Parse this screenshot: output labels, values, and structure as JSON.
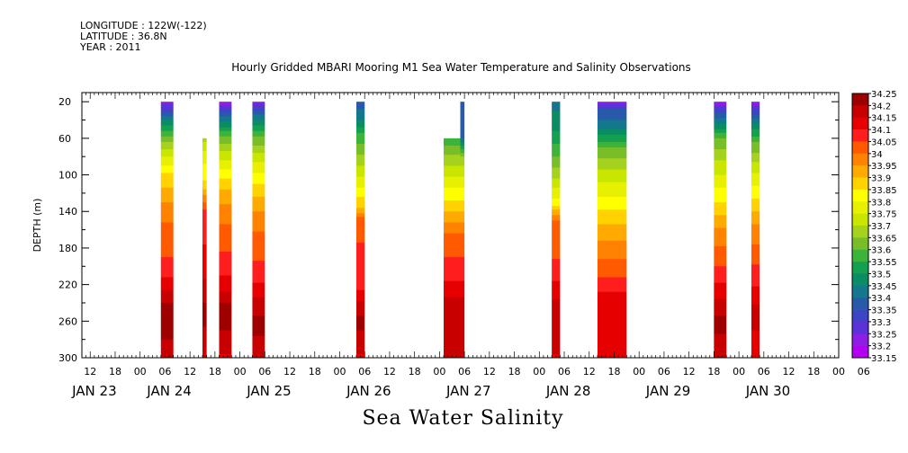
{
  "header": {
    "longitude": "LONGITUDE : 122W(-122)",
    "latitude": "LATITUDE : 36.8N",
    "year": "YEAR : 2011"
  },
  "chart_data": {
    "type": "heatmap",
    "title": "Hourly Gridded MBARI Mooring M1 Sea Water Temperature and Salinity Observations",
    "bottom_label": "Sea Water Salinity",
    "ylabel": "DEPTH (m)",
    "ylim": [
      10,
      300
    ],
    "y_reversed": true,
    "y_ticks": [
      20,
      60,
      100,
      140,
      180,
      220,
      260,
      300
    ],
    "xlim_hours": [
      -14,
      168
    ],
    "x_hour_ticks": [
      {
        "h": -12,
        "label": "12"
      },
      {
        "h": -6,
        "label": "18"
      },
      {
        "h": 0,
        "label": "00"
      },
      {
        "h": 6,
        "label": "06"
      },
      {
        "h": 12,
        "label": "12"
      },
      {
        "h": 18,
        "label": "18"
      },
      {
        "h": 24,
        "label": "00"
      },
      {
        "h": 30,
        "label": "06"
      },
      {
        "h": 36,
        "label": "12"
      },
      {
        "h": 42,
        "label": "18"
      },
      {
        "h": 48,
        "label": "00"
      },
      {
        "h": 54,
        "label": "06"
      },
      {
        "h": 60,
        "label": "12"
      },
      {
        "h": 66,
        "label": "18"
      },
      {
        "h": 72,
        "label": "00"
      },
      {
        "h": 78,
        "label": "06"
      },
      {
        "h": 84,
        "label": "12"
      },
      {
        "h": 90,
        "label": "18"
      },
      {
        "h": 96,
        "label": "00"
      },
      {
        "h": 102,
        "label": "06"
      },
      {
        "h": 108,
        "label": "12"
      },
      {
        "h": 114,
        "label": "18"
      },
      {
        "h": 120,
        "label": "00"
      },
      {
        "h": 126,
        "label": "06"
      },
      {
        "h": 132,
        "label": "12"
      },
      {
        "h": 138,
        "label": "18"
      },
      {
        "h": 144,
        "label": "00"
      },
      {
        "h": 150,
        "label": "06"
      },
      {
        "h": 156,
        "label": "12"
      },
      {
        "h": 162,
        "label": "18"
      },
      {
        "h": 168,
        "label": "00"
      },
      {
        "h": 174,
        "label": "06"
      }
    ],
    "x_day_labels": [
      {
        "h": -11,
        "label": "JAN 23"
      },
      {
        "h": 7,
        "label": "JAN 24"
      },
      {
        "h": 31,
        "label": "JAN 25"
      },
      {
        "h": 55,
        "label": "JAN 26"
      },
      {
        "h": 79,
        "label": "JAN 27"
      },
      {
        "h": 103,
        "label": "JAN 28"
      },
      {
        "h": 127,
        "label": "JAN 29"
      },
      {
        "h": 151,
        "label": "JAN 30"
      }
    ],
    "colorbar": {
      "levels": [
        "34.25",
        "34.2",
        "34.15",
        "34.1",
        "34.05",
        "34",
        "33.95",
        "33.9",
        "33.85",
        "33.8",
        "33.75",
        "33.7",
        "33.65",
        "33.6",
        "33.55",
        "33.5",
        "33.45",
        "33.4",
        "33.35",
        "33.3",
        "33.25",
        "33.2",
        "33.15"
      ],
      "colors": [
        "#9e0000",
        "#c80000",
        "#e60000",
        "#ff1e1e",
        "#ff5a00",
        "#ff8200",
        "#ffaa00",
        "#ffd200",
        "#ffff00",
        "#e6f000",
        "#c8e600",
        "#a5d21e",
        "#78be28",
        "#3cb43c",
        "#14a050",
        "#0a8c64",
        "#14788c",
        "#285aaa",
        "#3c46c3",
        "#5a32d7",
        "#8c1ee6",
        "#b400f0"
      ]
    },
    "columns": [
      {
        "start": 5,
        "end": 8,
        "top": 20,
        "profile": [
          [
            20,
            33.22
          ],
          [
            30,
            33.32
          ],
          [
            40,
            33.45
          ],
          [
            55,
            33.58
          ],
          [
            75,
            33.72
          ],
          [
            100,
            33.86
          ],
          [
            130,
            33.95
          ],
          [
            160,
            34.02
          ],
          [
            200,
            34.06
          ],
          [
            230,
            34.16
          ],
          [
            250,
            34.24
          ],
          [
            270,
            34.22
          ],
          [
            300,
            34.16
          ]
        ]
      },
      {
        "start": 15,
        "end": 16,
        "top": 60,
        "profile": [
          [
            60,
            33.68
          ],
          [
            80,
            33.78
          ],
          [
            110,
            33.86
          ],
          [
            140,
            34.07
          ],
          [
            200,
            34.12
          ],
          [
            250,
            34.22
          ],
          [
            300,
            34.16
          ]
        ]
      },
      {
        "start": 19,
        "end": 22,
        "top": 20,
        "profile": [
          [
            20,
            33.2
          ],
          [
            30,
            33.33
          ],
          [
            45,
            33.48
          ],
          [
            60,
            33.62
          ],
          [
            85,
            33.76
          ],
          [
            110,
            33.88
          ],
          [
            140,
            33.98
          ],
          [
            180,
            34.04
          ],
          [
            220,
            34.12
          ],
          [
            250,
            34.24
          ],
          [
            270,
            34.2
          ],
          [
            300,
            34.14
          ]
        ]
      },
      {
        "start": 27,
        "end": 30,
        "top": 20,
        "profile": [
          [
            20,
            33.22
          ],
          [
            30,
            33.35
          ],
          [
            40,
            33.45
          ],
          [
            55,
            33.58
          ],
          [
            80,
            33.72
          ],
          [
            110,
            33.85
          ],
          [
            140,
            33.95
          ],
          [
            170,
            34.02
          ],
          [
            210,
            34.07
          ],
          [
            240,
            34.17
          ],
          [
            265,
            34.22
          ],
          [
            300,
            34.16
          ]
        ]
      },
      {
        "start": 52,
        "end": 54,
        "top": 20,
        "profile": [
          [
            20,
            33.38
          ],
          [
            35,
            33.42
          ],
          [
            55,
            33.55
          ],
          [
            80,
            33.66
          ],
          [
            110,
            33.78
          ],
          [
            140,
            33.92
          ],
          [
            150,
            34.04
          ],
          [
            220,
            34.07
          ],
          [
            240,
            34.16
          ],
          [
            260,
            34.22
          ],
          [
            300,
            34.14
          ]
        ]
      },
      {
        "start": 73,
        "end": 77,
        "top": 60,
        "profile": [
          [
            60,
            33.56
          ],
          [
            80,
            33.66
          ],
          [
            110,
            33.78
          ],
          [
            140,
            33.9
          ],
          [
            170,
            34.02
          ],
          [
            210,
            34.08
          ],
          [
            240,
            34.17
          ],
          [
            270,
            34.2
          ],
          [
            300,
            34.16
          ]
        ]
      },
      {
        "start": 77,
        "end": 78,
        "top": 20,
        "profile": [
          [
            20,
            33.36
          ],
          [
            60,
            33.4
          ],
          [
            80,
            33.66
          ],
          [
            110,
            33.78
          ],
          [
            140,
            33.9
          ],
          [
            170,
            34.02
          ],
          [
            210,
            34.08
          ],
          [
            240,
            34.17
          ],
          [
            270,
            34.2
          ],
          [
            300,
            34.16
          ]
        ]
      },
      {
        "start": 99,
        "end": 101,
        "top": 20,
        "profile": [
          [
            20,
            33.44
          ],
          [
            40,
            33.46
          ],
          [
            70,
            33.56
          ],
          [
            100,
            33.68
          ],
          [
            130,
            33.82
          ],
          [
            150,
            34.0
          ],
          [
            200,
            34.06
          ],
          [
            240,
            34.16
          ],
          [
            270,
            34.2
          ],
          [
            300,
            34.14
          ]
        ]
      },
      {
        "start": 110,
        "end": 117,
        "top": 20,
        "profile": [
          [
            20,
            33.2
          ],
          [
            28,
            33.35
          ],
          [
            45,
            33.42
          ],
          [
            70,
            33.6
          ],
          [
            100,
            33.72
          ],
          [
            130,
            33.82
          ],
          [
            160,
            33.92
          ],
          [
            200,
            34.02
          ],
          [
            220,
            34.07
          ],
          [
            240,
            34.14
          ],
          [
            270,
            34.14
          ],
          [
            300,
            34.12
          ]
        ]
      },
      {
        "start": 138,
        "end": 141,
        "top": 20,
        "profile": [
          [
            20,
            33.2
          ],
          [
            30,
            33.34
          ],
          [
            45,
            33.45
          ],
          [
            60,
            33.6
          ],
          [
            90,
            33.72
          ],
          [
            130,
            33.85
          ],
          [
            160,
            33.96
          ],
          [
            200,
            34.05
          ],
          [
            240,
            34.16
          ],
          [
            260,
            34.22
          ],
          [
            300,
            34.16
          ]
        ]
      },
      {
        "start": 147,
        "end": 149,
        "top": 20,
        "profile": [
          [
            20,
            33.2
          ],
          [
            30,
            33.32
          ],
          [
            45,
            33.46
          ],
          [
            65,
            33.6
          ],
          [
            90,
            33.72
          ],
          [
            120,
            33.83
          ],
          [
            150,
            33.94
          ],
          [
            190,
            34.03
          ],
          [
            230,
            34.12
          ],
          [
            260,
            34.2
          ],
          [
            280,
            34.1
          ],
          [
            300,
            34.12
          ]
        ]
      }
    ]
  }
}
